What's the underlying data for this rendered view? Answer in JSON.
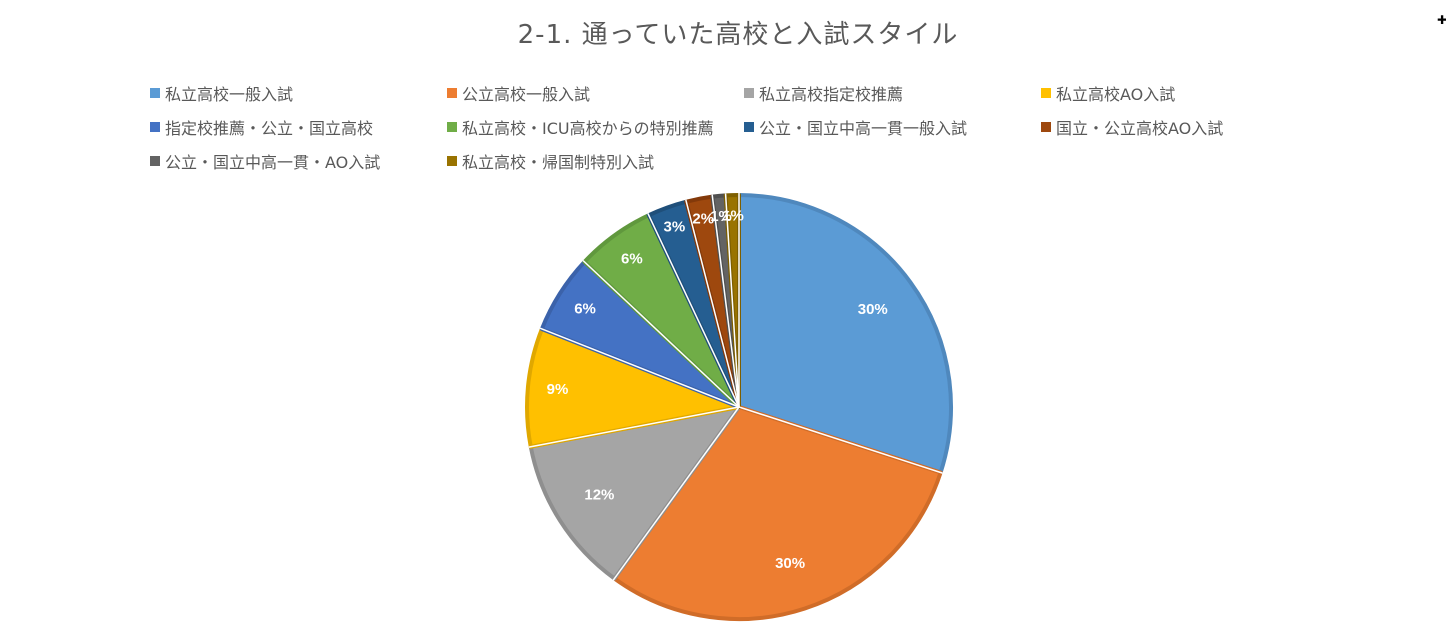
{
  "chart_data": {
    "type": "pie",
    "title": "2-1. 通っていた高校と入試スタイル",
    "legend_position": "top",
    "categories": [
      "私立高校一般入試",
      "公立高校一般入試",
      "私立高校指定校推薦",
      "私立高校AO入試",
      "指定校推薦・公立・国立高校",
      "私立高校・ICU高校からの特別推薦",
      "公立・国立中高一貫一般入試",
      "国立・公立高校AO入試",
      "公立・国立中高一貫・AO入試",
      "私立高校・帰国制特別入試"
    ],
    "values": [
      30,
      30,
      12,
      9,
      6,
      6,
      3,
      2,
      1,
      1
    ],
    "data_labels": [
      "30%",
      "30%",
      "12%",
      "9%",
      "6%",
      "6%",
      "3%",
      "2%",
      "1%",
      "1%"
    ],
    "colors": [
      "#5B9BD5",
      "#ED7D31",
      "#A5A5A5",
      "#FFC000",
      "#4472C4",
      "#70AD47",
      "#255E91",
      "#9E480E",
      "#636363",
      "#997300"
    ],
    "border_colors": [
      "#4F88BD",
      "#D06C28",
      "#8F8F8F",
      "#E0A800",
      "#3B62AA",
      "#60983D",
      "#1F4F7A",
      "#83390A",
      "#505050",
      "#7E5F00"
    ]
  },
  "corner_icon": "cursor-plus-icon",
  "corner_symbol": "✚"
}
